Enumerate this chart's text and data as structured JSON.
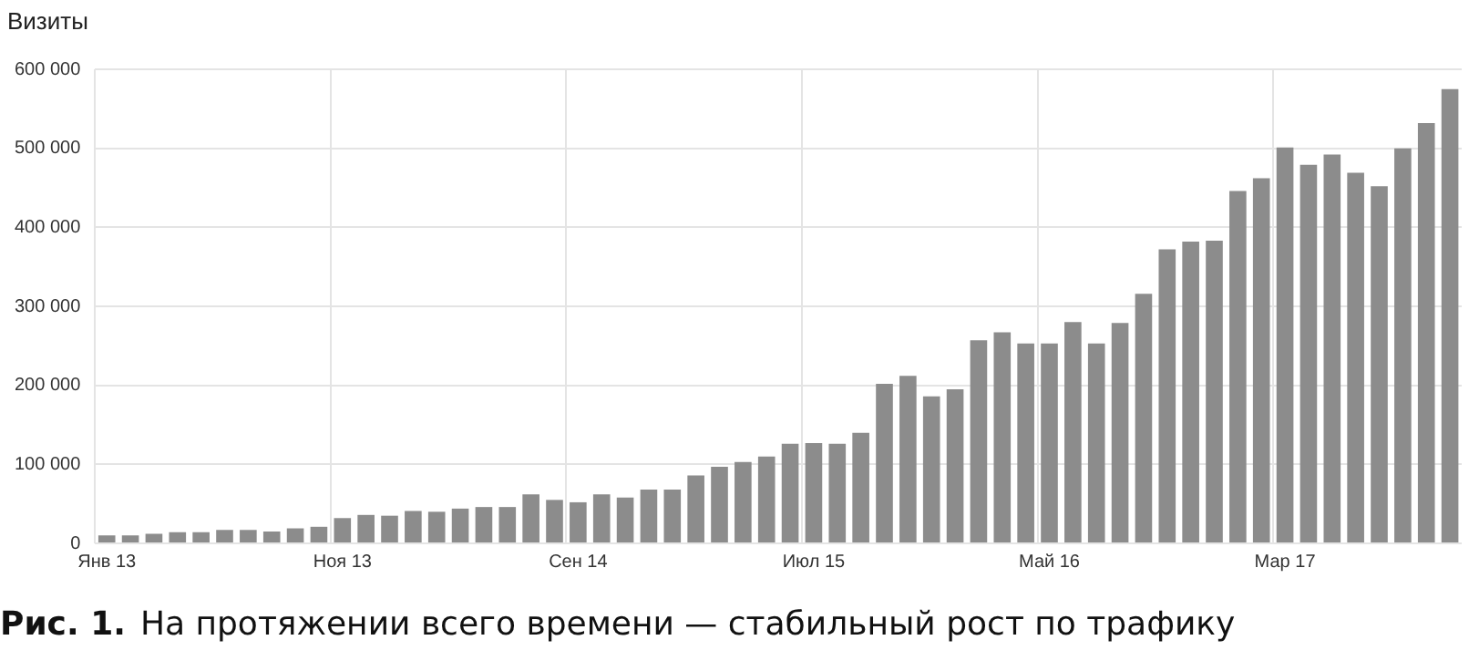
{
  "chart_data": {
    "type": "bar",
    "ylabel": "Визиты",
    "categories": [
      "Янв 13",
      null,
      null,
      null,
      null,
      null,
      null,
      null,
      null,
      null,
      "Ноя 13",
      null,
      null,
      null,
      null,
      null,
      null,
      null,
      null,
      null,
      "Сен 14",
      null,
      null,
      null,
      null,
      null,
      null,
      null,
      null,
      null,
      "Июл 15",
      null,
      null,
      null,
      null,
      null,
      null,
      null,
      null,
      null,
      "Май 16",
      null,
      null,
      null,
      null,
      null,
      null,
      null,
      null,
      null,
      "Мар 17",
      null,
      null,
      null,
      null,
      null,
      null,
      null
    ],
    "values": [
      10000,
      10000,
      12000,
      14000,
      14000,
      17000,
      17000,
      15000,
      19000,
      21000,
      32000,
      36000,
      35000,
      41000,
      40000,
      44000,
      46000,
      46000,
      62000,
      55000,
      52000,
      62000,
      58000,
      68000,
      68000,
      86000,
      97000,
      103000,
      110000,
      126000,
      127000,
      126000,
      140000,
      202000,
      212000,
      186000,
      195000,
      257000,
      267000,
      253000,
      253000,
      280000,
      253000,
      279000,
      316000,
      372000,
      382000,
      383000,
      446000,
      462000,
      501000,
      479000,
      492000,
      469000,
      452000,
      500000,
      532000,
      575000
    ],
    "color": "#8c8c8c",
    "ylim": [
      0,
      600000
    ],
    "yticks": [
      0,
      {
        "value": 100000,
        "label": "100 000"
      },
      {
        "value": 200000,
        "label": "200 000"
      },
      {
        "value": 300000,
        "label": "300 000"
      },
      {
        "value": 400000,
        "label": "400 000"
      },
      {
        "value": 500000,
        "label": "500 000"
      },
      {
        "value": 600000,
        "label": "600 000"
      }
    ],
    "grid": true,
    "annotations": [
      "Рис. 1.",
      "На протяжении всего времени — стабильный рост по трафику"
    ]
  }
}
